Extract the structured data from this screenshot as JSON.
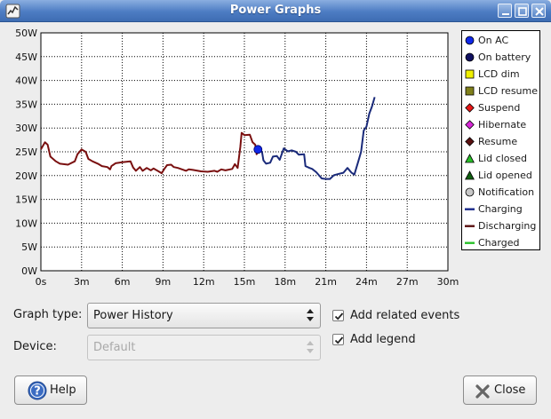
{
  "window": {
    "title": "Power Graphs",
    "icon": "application-icon",
    "controls": [
      "minimize-icon",
      "maximize-icon",
      "close-icon"
    ]
  },
  "chart_data": {
    "type": "line",
    "xlabel": "",
    "ylabel": "",
    "x_unit": "minutes",
    "y_unit": "W",
    "xlim": [
      0,
      30
    ],
    "ylim": [
      0,
      50
    ],
    "grid": true,
    "legend_position": "right",
    "x_ticks": [
      "0s",
      "3m",
      "6m",
      "9m",
      "12m",
      "15m",
      "18m",
      "21m",
      "24m",
      "27m",
      "30m"
    ],
    "y_ticks": [
      "0W",
      "5W",
      "10W",
      "15W",
      "20W",
      "25W",
      "30W",
      "35W",
      "40W",
      "45W",
      "50W"
    ],
    "series": [
      {
        "name": "Discharging",
        "color": "#7a1010",
        "points": [
          [
            0,
            25.5
          ],
          [
            0.3,
            27
          ],
          [
            0.5,
            26.5
          ],
          [
            0.7,
            24
          ],
          [
            1.1,
            23
          ],
          [
            1.4,
            22.5
          ],
          [
            2.0,
            22.3
          ],
          [
            2.5,
            23
          ],
          [
            2.7,
            24.5
          ],
          [
            3.0,
            25.5
          ],
          [
            3.3,
            25
          ],
          [
            3.5,
            23.5
          ],
          [
            3.8,
            23
          ],
          [
            4.2,
            22.5
          ],
          [
            4.5,
            22
          ],
          [
            4.9,
            21.8
          ],
          [
            5.1,
            21.3
          ],
          [
            5.2,
            22
          ],
          [
            5.5,
            22.6
          ],
          [
            6.0,
            22.8
          ],
          [
            6.6,
            23
          ],
          [
            6.8,
            21.7
          ],
          [
            7.0,
            21
          ],
          [
            7.3,
            21.8
          ],
          [
            7.5,
            21
          ],
          [
            7.8,
            21.6
          ],
          [
            8.1,
            21.1
          ],
          [
            8.3,
            21.5
          ],
          [
            8.6,
            21
          ],
          [
            8.9,
            20.5
          ],
          [
            9.1,
            21.4
          ],
          [
            9.3,
            22.2
          ],
          [
            9.6,
            22.3
          ],
          [
            9.8,
            21.8
          ],
          [
            10.1,
            21.6
          ],
          [
            10.4,
            21.3
          ],
          [
            10.7,
            21
          ],
          [
            10.9,
            21.3
          ],
          [
            11.2,
            21.2
          ],
          [
            11.8,
            20.9
          ],
          [
            12.3,
            20.8
          ],
          [
            12.8,
            21
          ],
          [
            13.0,
            20.8
          ],
          [
            13.3,
            21.3
          ],
          [
            13.6,
            21.1
          ],
          [
            14.1,
            21.4
          ],
          [
            14.3,
            22.4
          ],
          [
            14.5,
            21.6
          ],
          [
            14.7,
            26
          ],
          [
            14.8,
            29
          ],
          [
            15.0,
            28.5
          ],
          [
            15.4,
            28.6
          ],
          [
            15.6,
            27
          ],
          [
            15.8,
            26.5
          ],
          [
            15.9,
            24.5
          ],
          [
            16.0,
            25
          ]
        ]
      },
      {
        "name": "Charging",
        "color": "#1a2a7a",
        "points": [
          [
            16.1,
            25.5
          ],
          [
            16.3,
            25
          ],
          [
            16.4,
            23.2
          ],
          [
            16.6,
            22.5
          ],
          [
            16.9,
            22.7
          ],
          [
            17.1,
            24
          ],
          [
            17.4,
            24.1
          ],
          [
            17.6,
            23.3
          ],
          [
            17.9,
            25.7
          ],
          [
            18.2,
            25.1
          ],
          [
            18.5,
            25.3
          ],
          [
            18.8,
            25
          ],
          [
            19.0,
            24.4
          ],
          [
            19.4,
            24.5
          ],
          [
            19.5,
            22
          ],
          [
            19.8,
            21.6
          ],
          [
            20.0,
            21.4
          ],
          [
            20.3,
            20.7
          ],
          [
            20.7,
            19.4
          ],
          [
            21.0,
            19.3
          ],
          [
            21.3,
            19.3
          ],
          [
            21.6,
            20.1
          ],
          [
            22.0,
            20.4
          ],
          [
            22.3,
            20.6
          ],
          [
            22.6,
            21.6
          ],
          [
            22.9,
            20.6
          ],
          [
            23.1,
            20.2
          ],
          [
            23.4,
            23
          ],
          [
            23.6,
            25
          ],
          [
            23.8,
            29.5
          ],
          [
            24.0,
            30.3
          ],
          [
            24.2,
            33
          ],
          [
            24.4,
            34.5
          ],
          [
            24.6,
            36.5
          ]
        ]
      }
    ],
    "events": [
      {
        "name": "On AC",
        "x": 16.0,
        "y": 25.5
      }
    ]
  },
  "legend": {
    "items": [
      {
        "label": "On AC",
        "shape": "circle",
        "color": "#1028e8"
      },
      {
        "label": "On battery",
        "shape": "circle",
        "color": "#101060"
      },
      {
        "label": "LCD dim",
        "shape": "square",
        "color": "#f0f000"
      },
      {
        "label": "LCD resume",
        "shape": "square",
        "color": "#80801a"
      },
      {
        "label": "Suspend",
        "shape": "diamond",
        "color": "#e81818"
      },
      {
        "label": "Hibernate",
        "shape": "diamond",
        "color": "#d828d8"
      },
      {
        "label": "Resume",
        "shape": "diamond",
        "color": "#5a1010"
      },
      {
        "label": "Lid closed",
        "shape": "triangle",
        "color": "#28c028"
      },
      {
        "label": "Lid opened",
        "shape": "triangle",
        "color": "#106010"
      },
      {
        "label": "Notification",
        "shape": "circle",
        "color": "#c8c8c8"
      },
      {
        "label": "Charging",
        "shape": "line",
        "color": "#1a2a8a"
      },
      {
        "label": "Discharging",
        "shape": "line",
        "color": "#5a1010"
      },
      {
        "label": "Charged",
        "shape": "line",
        "color": "#28c028"
      }
    ]
  },
  "controls": {
    "graph_type_label": "Graph type:",
    "graph_type_value": "Power History",
    "device_label": "Device:",
    "device_value": "Default",
    "add_related_events_label": "Add related events",
    "add_related_events_checked": true,
    "add_legend_label": "Add legend",
    "add_legend_checked": true
  },
  "buttons": {
    "help_label": "Help",
    "close_label": "Close"
  }
}
